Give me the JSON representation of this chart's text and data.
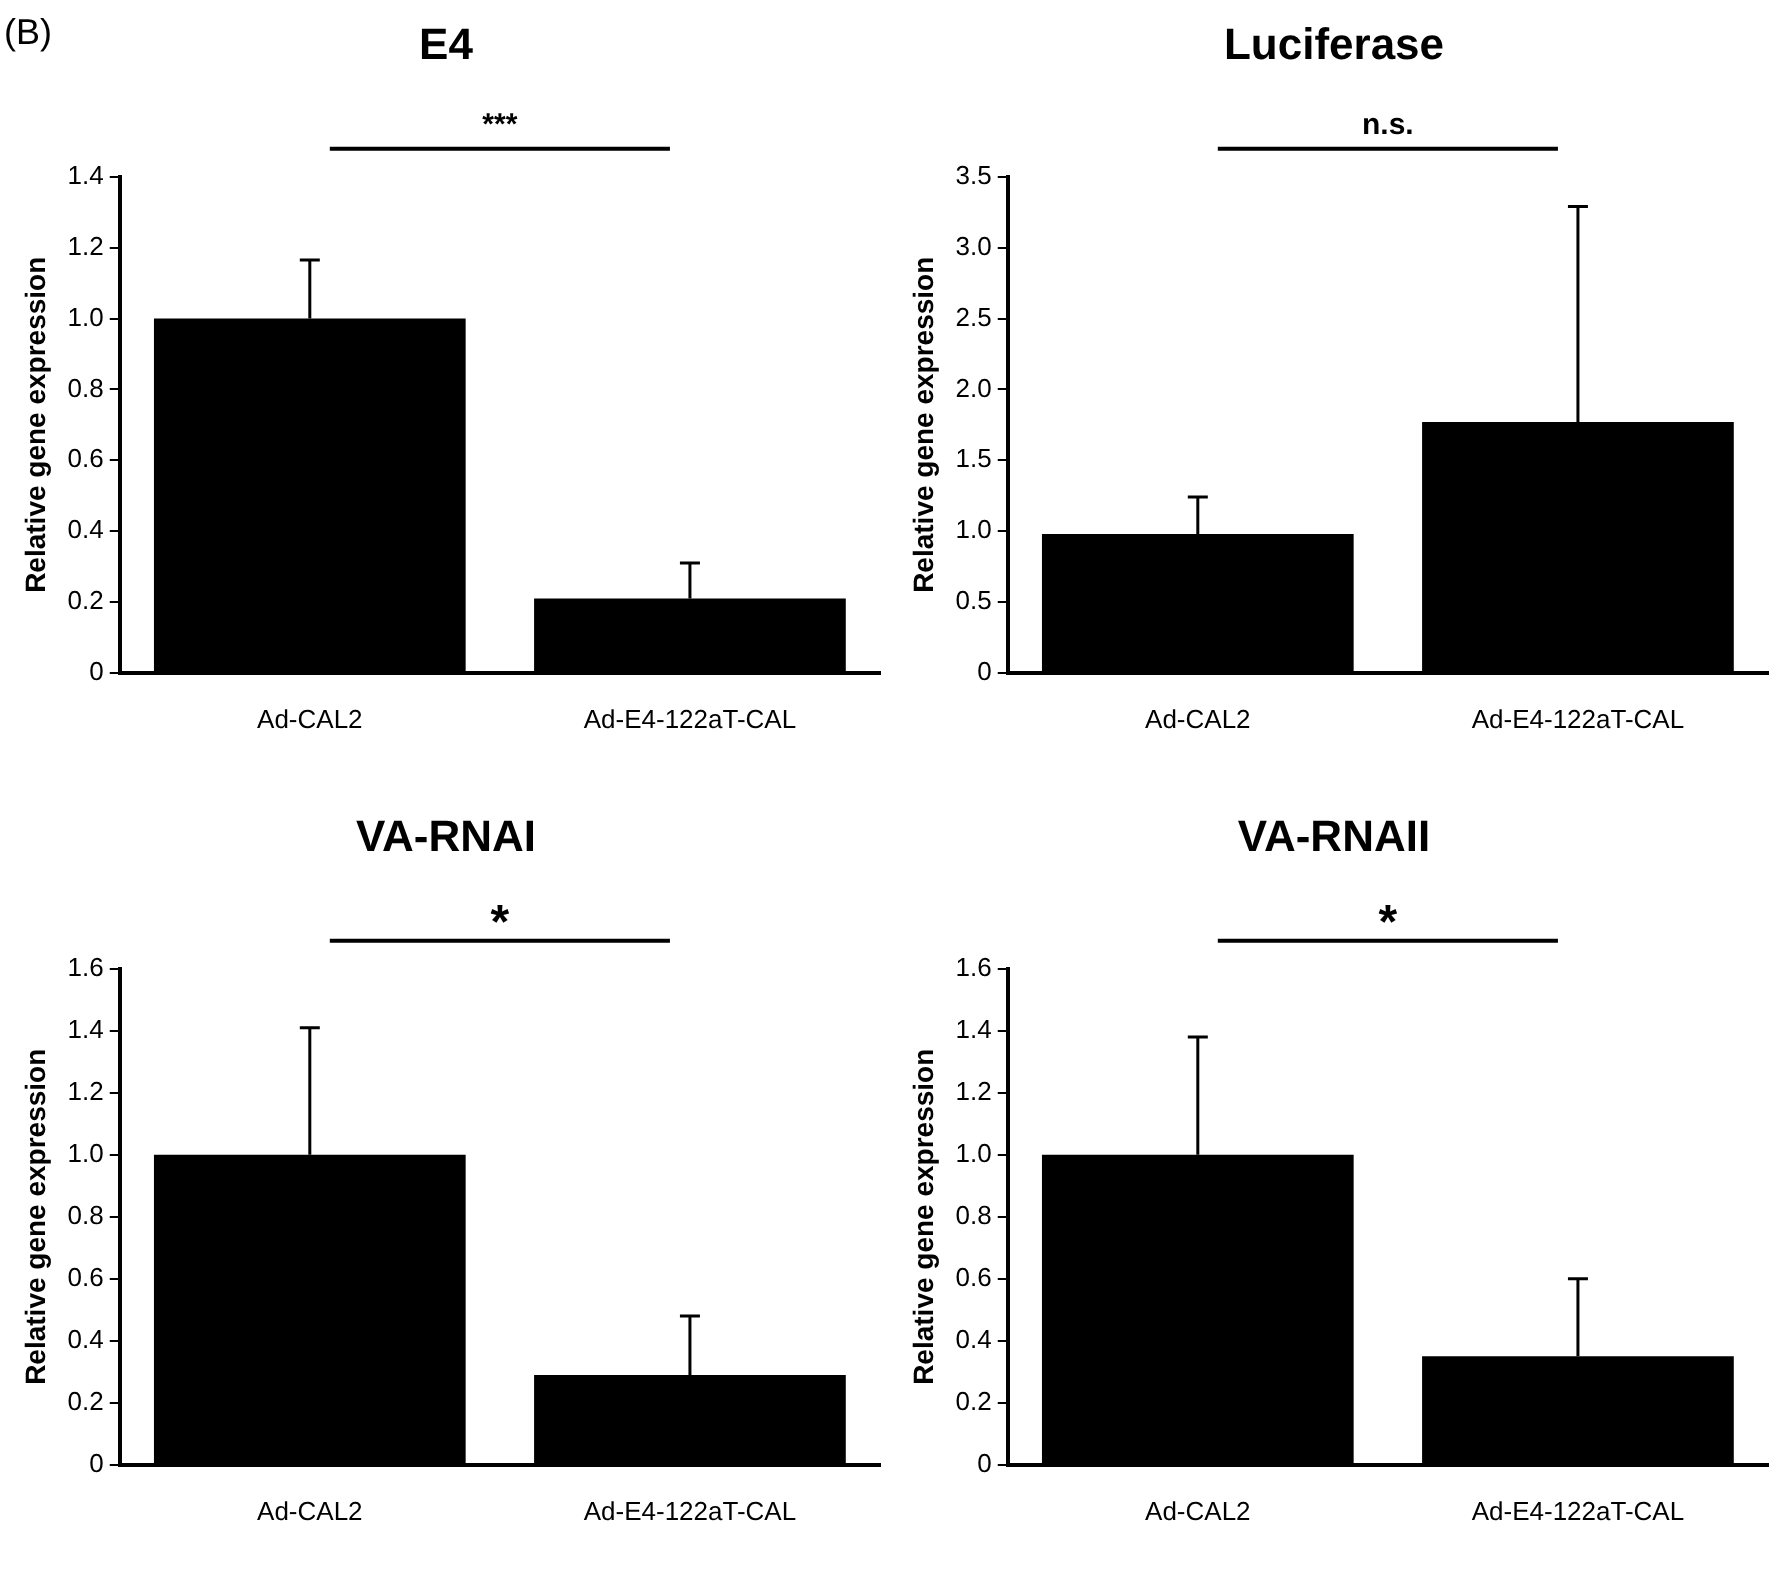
{
  "chart_data": [
    {
      "type": "bar",
      "title": "E4",
      "ylabel": "Relative gene expression",
      "categories": [
        "Ad-CAL2",
        "Ad-E4-122aT-CAL"
      ],
      "values": [
        1.0,
        0.21
      ],
      "errors": [
        [
          1.0,
          1.165
        ],
        [
          0.21,
          0.31
        ]
      ],
      "color": "#000000",
      "ylim": [
        0,
        1.4
      ],
      "yticks": [
        {
          "value": 0,
          "label": "0"
        },
        0.2,
        0.4,
        0.6,
        0.8,
        {
          "value": 1,
          "label": "1.0"
        },
        1.2,
        1.4
      ],
      "annotations": [
        "(B)",
        "***"
      ],
      "grid": false,
      "legend": false
    },
    {
      "type": "bar",
      "title": "Luciferase",
      "ylabel": "Relative gene expression",
      "categories": [
        "Ad-CAL2",
        "Ad-E4-122aT-CAL"
      ],
      "values": [
        0.98,
        1.77
      ],
      "errors": [
        [
          0.98,
          1.24
        ],
        [
          1.77,
          3.29
        ]
      ],
      "color": "#000000",
      "ylim": [
        0,
        3.5
      ],
      "yticks": [
        {
          "value": 0,
          "label": "0"
        },
        0.5,
        {
          "value": 1,
          "label": "1.0"
        },
        1.5,
        {
          "value": 2,
          "label": "2.0"
        },
        2.5,
        {
          "value": 3,
          "label": "3.0"
        },
        3.5
      ],
      "annotations": [
        "n.s."
      ],
      "grid": false,
      "legend": false
    },
    {
      "type": "bar",
      "title": "VA-RNAI",
      "ylabel": "Relative gene expression",
      "categories": [
        "Ad-CAL2",
        "Ad-E4-122aT-CAL"
      ],
      "values": [
        1.0,
        0.29
      ],
      "errors": [
        [
          1.0,
          1.41
        ],
        [
          0.29,
          0.48
        ]
      ],
      "color": "#000000",
      "ylim": [
        0,
        1.6
      ],
      "yticks": [
        {
          "value": 0,
          "label": "0"
        },
        0.2,
        0.4,
        0.6,
        0.8,
        {
          "value": 1,
          "label": "1.0"
        },
        1.2,
        1.4,
        1.6
      ],
      "annotations": [
        "*"
      ],
      "grid": false,
      "legend": false
    },
    {
      "type": "bar",
      "title": "VA-RNAII",
      "ylabel": "Relative gene expression",
      "categories": [
        "Ad-CAL2",
        "Ad-E4-122aT-CAL"
      ],
      "values": [
        1.0,
        0.35
      ],
      "errors": [
        [
          1.0,
          1.38
        ],
        [
          0.35,
          0.6
        ]
      ],
      "color": "#000000",
      "ylim": [
        0,
        1.6
      ],
      "yticks": [
        {
          "value": 0,
          "label": "0"
        },
        0.2,
        0.4,
        0.6,
        0.8,
        {
          "value": 1,
          "label": "1.0"
        },
        1.2,
        1.4,
        1.6
      ],
      "annotations": [
        "*"
      ],
      "grid": false,
      "legend": false
    }
  ]
}
